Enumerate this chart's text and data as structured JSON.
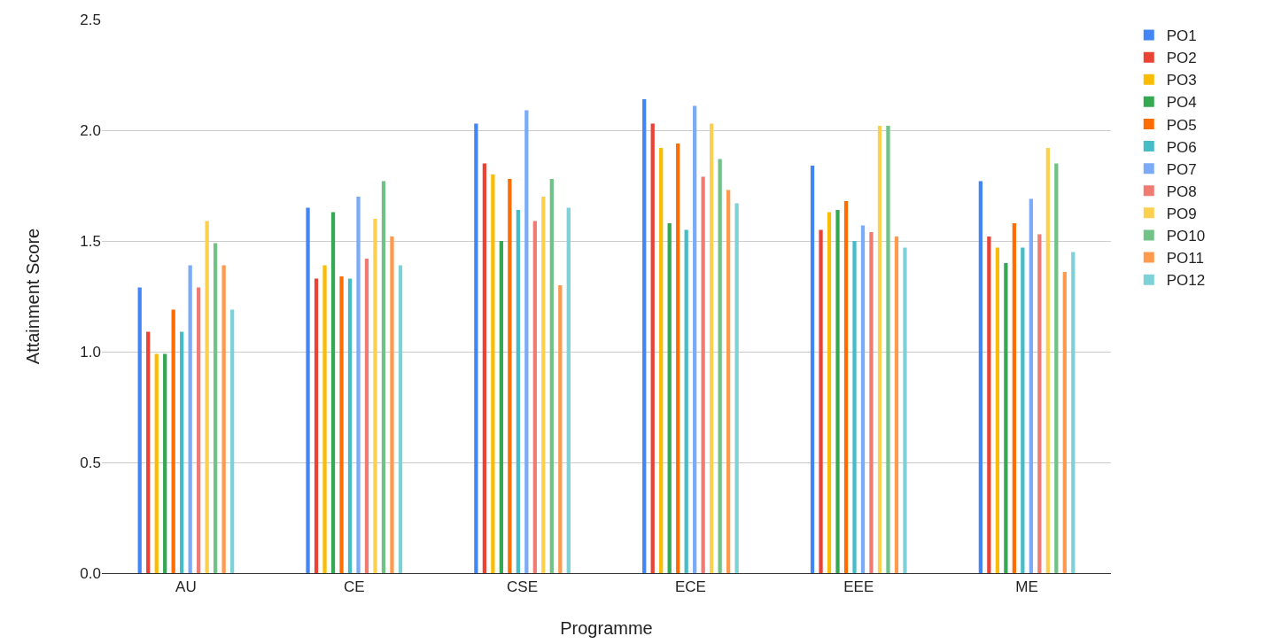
{
  "chart_data": {
    "type": "bar",
    "xlabel": "Programme",
    "ylabel": "Attainment Score",
    "categories": [
      "AU",
      "CE",
      "CSE",
      "ECE",
      "EEE",
      "ME"
    ],
    "ylim": [
      0,
      2.5
    ],
    "yticks": [
      {
        "value": 0,
        "label": "0.0"
      },
      0.5,
      {
        "value": 1,
        "label": "1.0"
      },
      1.5,
      {
        "value": 2,
        "label": "2.0"
      },
      2.5
    ],
    "grid": "y",
    "legend": "right",
    "series": [
      {
        "name": "PO1",
        "color": "#4285f4",
        "values": [
          1.29,
          1.65,
          2.03,
          2.14,
          1.84,
          1.77
        ]
      },
      {
        "name": "PO2",
        "color": "#ea4335",
        "values": [
          1.09,
          1.33,
          1.85,
          2.03,
          1.55,
          1.52
        ]
      },
      {
        "name": "PO3",
        "color": "#fbbc04",
        "values": [
          0.99,
          1.39,
          1.8,
          1.92,
          1.63,
          1.47
        ]
      },
      {
        "name": "PO4",
        "color": "#34a853",
        "values": [
          0.99,
          1.63,
          1.5,
          1.58,
          1.64,
          1.4
        ]
      },
      {
        "name": "PO5",
        "color": "#ff6d01",
        "values": [
          1.19,
          1.34,
          1.78,
          1.94,
          1.68,
          1.58
        ]
      },
      {
        "name": "PO6",
        "color": "#46bdc6",
        "values": [
          1.09,
          1.33,
          1.64,
          1.55,
          1.5,
          1.47
        ]
      },
      {
        "name": "PO7",
        "color": "#7baaf7",
        "values": [
          1.39,
          1.7,
          2.09,
          2.11,
          1.57,
          1.69
        ]
      },
      {
        "name": "PO8",
        "color": "#f07b72",
        "values": [
          1.29,
          1.42,
          1.59,
          1.79,
          1.54,
          1.53
        ]
      },
      {
        "name": "PO9",
        "color": "#fcd04f",
        "values": [
          1.59,
          1.6,
          1.7,
          2.03,
          2.02,
          1.92
        ]
      },
      {
        "name": "PO10",
        "color": "#71c287",
        "values": [
          1.49,
          1.77,
          1.78,
          1.87,
          2.02,
          1.85
        ]
      },
      {
        "name": "PO11",
        "color": "#ff994d",
        "values": [
          1.39,
          1.52,
          1.3,
          1.73,
          1.52,
          1.36
        ]
      },
      {
        "name": "PO12",
        "color": "#7ed1d7",
        "values": [
          1.19,
          1.39,
          1.65,
          1.67,
          1.47,
          1.45
        ]
      }
    ]
  }
}
